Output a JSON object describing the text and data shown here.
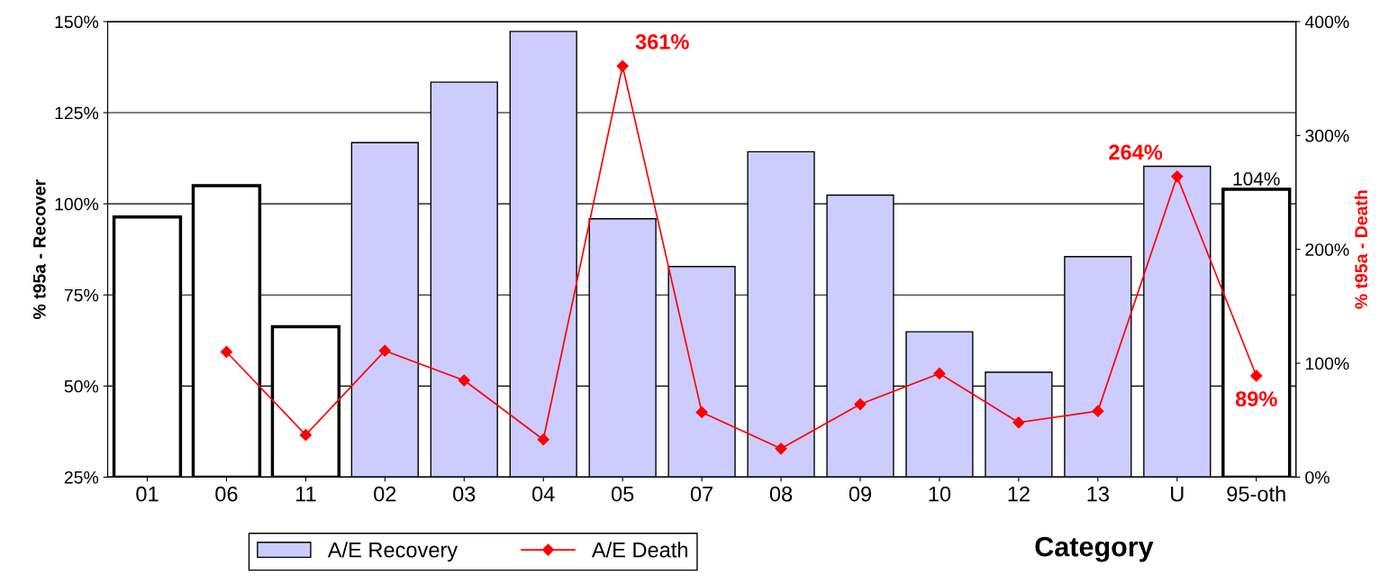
{
  "chart_data": {
    "type": "bar",
    "xlabel": "Category",
    "ylabel": "% t95a - Recover",
    "y2label": "% t95a - Death",
    "categories": [
      "01",
      "06",
      "11",
      "02",
      "03",
      "04",
      "05",
      "07",
      "08",
      "09",
      "10",
      "12",
      "13",
      "U",
      "95-oth"
    ],
    "series": [
      {
        "name": "A/E Recovery",
        "type": "bar",
        "colors": [
          "#ffffff",
          "#ffffff",
          "#ffffff",
          "#ccccff",
          "#ccccff",
          "#ccccff",
          "#ccccff",
          "#ccccff",
          "#ccccff",
          "#ccccff",
          "#ccccff",
          "#ccccff",
          "#ccccff",
          "#ccccff",
          "#ffffff"
        ],
        "values": [
          96.4,
          105,
          66.3,
          116.8,
          133.4,
          147.3,
          95.9,
          82.8,
          114.3,
          102.4,
          64.9,
          53.8,
          85.5,
          110.3,
          104
        ],
        "value_labels": [
          null,
          null,
          null,
          null,
          null,
          null,
          null,
          null,
          null,
          null,
          null,
          null,
          null,
          null,
          "104%"
        ]
      },
      {
        "name": "A/E Death",
        "type": "line",
        "axis": "y2",
        "color": "#ff0000",
        "marker": "diamond",
        "values": [
          null,
          110,
          37,
          111,
          85,
          33,
          361,
          57,
          25,
          64,
          91,
          48,
          58,
          264,
          89
        ],
        "value_labels": [
          null,
          null,
          null,
          null,
          null,
          null,
          "361%",
          null,
          null,
          null,
          null,
          null,
          null,
          "264%",
          "89%"
        ]
      }
    ],
    "ylim": [
      25,
      150
    ],
    "yticks": [
      {
        "value": 25,
        "label": "25%"
      },
      {
        "value": 50,
        "label": "50%"
      },
      {
        "value": 75,
        "label": "75%"
      },
      {
        "value": 100,
        "label": "100%"
      },
      {
        "value": 125,
        "label": "125%"
      },
      {
        "value": 150,
        "label": "150%"
      }
    ],
    "y2lim": [
      0,
      400
    ],
    "y2ticks": [
      {
        "value": 0,
        "label": "0%"
      },
      {
        "value": 100,
        "label": "100%"
      },
      {
        "value": 200,
        "label": "200%"
      },
      {
        "value": 300,
        "label": "300%"
      },
      {
        "value": 400,
        "label": "400%"
      }
    ],
    "grid": "y",
    "legend": "bottom left"
  }
}
